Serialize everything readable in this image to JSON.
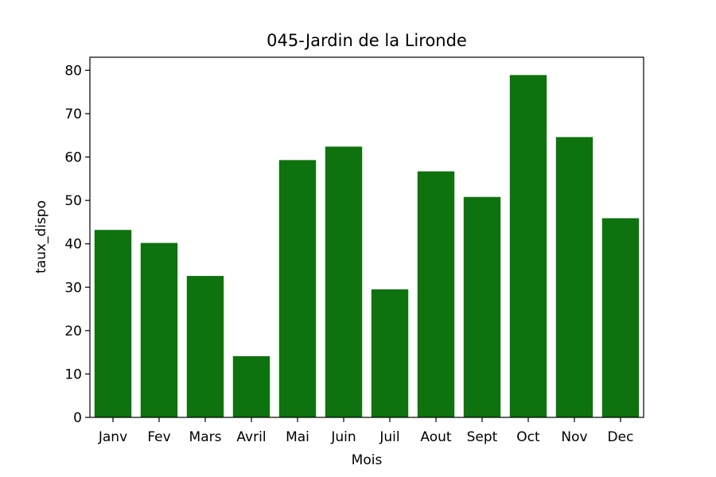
{
  "chart_data": {
    "type": "bar",
    "title": "045-Jardin de la Lironde",
    "xlabel": "Mois",
    "ylabel": "taux_dispo",
    "categories": [
      "Janv",
      "Fev",
      "Mars",
      "Avril",
      "Mai",
      "Juin",
      "Juil",
      "Aout",
      "Sept",
      "Oct",
      "Nov",
      "Dec"
    ],
    "values": [
      43.2,
      40.2,
      32.6,
      14.1,
      59.3,
      62.4,
      29.5,
      56.7,
      50.8,
      78.9,
      64.6,
      45.9
    ],
    "ylim": [
      0,
      83
    ],
    "yticks": [
      0,
      10,
      20,
      30,
      40,
      50,
      60,
      70,
      80
    ],
    "bar_color": "#0e720e",
    "grid": false,
    "legend": "none"
  }
}
